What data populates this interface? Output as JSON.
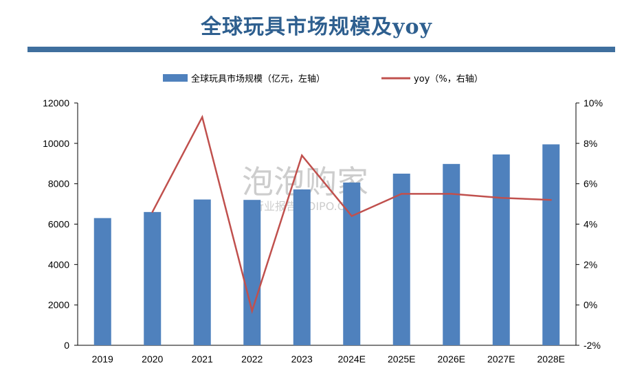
{
  "header": {
    "title": "全球玩具市场规模及yoy"
  },
  "watermark": {
    "brand": "泡泡购家",
    "sub": "行业报告 POIPO.CN"
  },
  "colors": {
    "bar": "#4f81bd",
    "line": "#c0504d",
    "title": "#2e5f8f",
    "rule": "#3f6f9e"
  },
  "chart_data": {
    "type": "bar",
    "categories": [
      "2019",
      "2020",
      "2021",
      "2022",
      "2023",
      "2024E",
      "2025E",
      "2026E",
      "2027E",
      "2028E"
    ],
    "series": [
      {
        "name": "全球玩具市场规模（亿元，左轴）",
        "type": "bar",
        "axis": "left",
        "values": [
          6300,
          6600,
          7220,
          7200,
          7720,
          8060,
          8500,
          8980,
          9450,
          9950
        ]
      },
      {
        "name": "yoy（%，右轴）",
        "type": "line",
        "axis": "right",
        "values": [
          null,
          4.6,
          9.3,
          -0.3,
          7.4,
          4.4,
          5.5,
          5.5,
          5.3,
          5.2
        ]
      }
    ],
    "ylim_left": [
      0,
      12000
    ],
    "yticks_left": [
      "0",
      "2000",
      "4000",
      "6000",
      "8000",
      "10000",
      "12000"
    ],
    "ylim_right": [
      -2,
      10
    ],
    "yticks_right": [
      "-2%",
      "0%",
      "2%",
      "4%",
      "6%",
      "8%",
      "10%"
    ],
    "legend_position": "top",
    "grid": false
  }
}
